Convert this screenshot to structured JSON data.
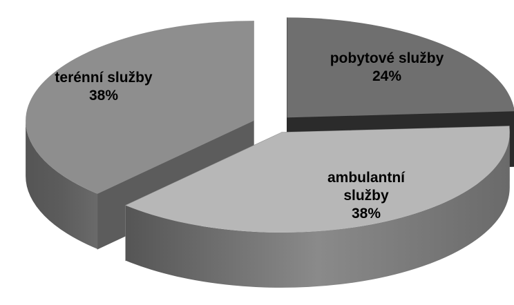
{
  "chart_data": {
    "type": "pie",
    "categories": [
      "pobytové služby",
      "ambulantní služby",
      "terénní služby"
    ],
    "values": [
      24,
      38,
      38
    ],
    "value_labels": [
      "24%",
      "38%",
      "38%"
    ],
    "colors": [
      "#6f6f6f",
      "#b7b7b7",
      "#8e8e8e"
    ],
    "side_colors": [
      "#2b2b2b",
      "#8a8a8a",
      "#5c5c5c"
    ],
    "exploded": true,
    "three_d": true
  }
}
